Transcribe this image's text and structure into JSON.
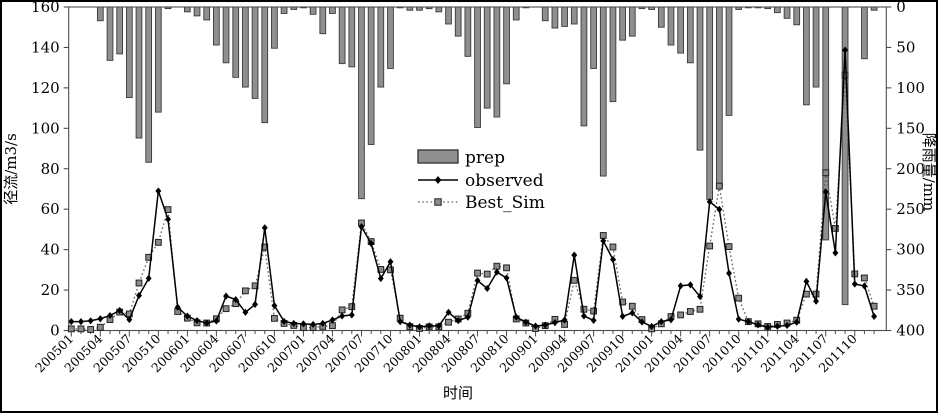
{
  "chart_data": {
    "type": "bar",
    "subtype": "combo-dual-axis",
    "title": "",
    "xlabel": "时间",
    "y_left": {
      "label": "径流/m3/s",
      "min": 0,
      "max": 160,
      "step": 20,
      "ticks": [
        "0",
        "20",
        "40",
        "60",
        "80",
        "100",
        "120",
        "140",
        "160"
      ]
    },
    "y_right": {
      "label": "降雨量/mm",
      "min": 0,
      "max": 400,
      "step": 50,
      "inverted": true,
      "ticks": [
        "0",
        "50",
        "100",
        "150",
        "200",
        "250",
        "300",
        "350",
        "400"
      ]
    },
    "x_tick_label_every": 3,
    "legend": {
      "position": "center",
      "items": [
        {
          "label": "prep",
          "swatch": "bar"
        },
        {
          "label": "observed",
          "swatch": "line-diamond"
        },
        {
          "label": "Best_Sim",
          "swatch": "dotted-square"
        }
      ]
    },
    "categories": [
      "200501",
      "200502",
      "200503",
      "200504",
      "200505",
      "200506",
      "200507",
      "200508",
      "200509",
      "200510",
      "200511",
      "200512",
      "200601",
      "200602",
      "200603",
      "200604",
      "200605",
      "200606",
      "200607",
      "200608",
      "200609",
      "200610",
      "200611",
      "200612",
      "200701",
      "200702",
      "200703",
      "200704",
      "200705",
      "200706",
      "200707",
      "200708",
      "200709",
      "200710",
      "200711",
      "200712",
      "200801",
      "200802",
      "200803",
      "200804",
      "200805",
      "200806",
      "200807",
      "200808",
      "200809",
      "200810",
      "200811",
      "200812",
      "200901",
      "200902",
      "200903",
      "200904",
      "200905",
      "200906",
      "200907",
      "200908",
      "200909",
      "200910",
      "200911",
      "200912",
      "201001",
      "201002",
      "201003",
      "201004",
      "201005",
      "201006",
      "201007",
      "201008",
      "201009",
      "201010",
      "201011",
      "201012",
      "201101",
      "201102",
      "201103",
      "201104",
      "201105",
      "201106",
      "201107",
      "201108",
      "201109",
      "201110",
      "201111",
      "201112"
    ],
    "series": [
      {
        "name": "prep",
        "type": "bar",
        "axis": "right",
        "unit": "mm",
        "color": "#8f8f8f",
        "border_color": "#3a3a3a",
        "values": [
          0,
          0,
          0,
          17,
          66,
          58,
          112,
          162,
          192,
          130,
          2,
          0,
          6,
          11,
          16,
          47,
          69,
          87,
          99,
          113,
          143,
          51,
          8,
          3,
          1,
          9,
          33,
          8,
          70,
          74,
          237,
          170,
          99,
          76,
          1,
          4,
          4,
          2,
          6,
          21,
          36,
          61,
          149,
          125,
          136,
          95,
          16,
          1,
          0,
          17,
          26,
          24,
          21,
          147,
          76,
          209,
          117,
          41,
          36,
          2,
          3,
          25,
          47,
          57,
          69,
          177,
          238,
          224,
          134,
          3,
          1,
          1,
          2,
          7,
          14,
          22,
          121,
          99,
          288,
          0,
          368,
          0,
          64,
          4
        ]
      },
      {
        "name": "observed",
        "type": "line",
        "axis": "left",
        "unit": "m3/s",
        "color": "#000000",
        "marker": "diamond",
        "values": [
          4.4,
          4.4,
          4.8,
          5.8,
          7.4,
          9.9,
          5.4,
          17.3,
          25.8,
          69,
          55,
          11.5,
          7.1,
          4.9,
          3.7,
          4.7,
          17,
          15.3,
          9,
          12.9,
          50.8,
          12.3,
          4.5,
          3.5,
          3.3,
          3,
          3.5,
          5.2,
          7.2,
          7.7,
          51.3,
          43,
          25.7,
          34,
          4.4,
          2.7,
          1.8,
          2.3,
          2.3,
          9,
          4.9,
          6.6,
          24.7,
          20.8,
          28.9,
          26,
          6.6,
          4.1,
          2.2,
          2.7,
          3.9,
          5.2,
          37.3,
          7.2,
          5,
          44.3,
          35.1,
          7,
          8.7,
          4.2,
          2,
          4.4,
          5.3,
          22.1,
          22.6,
          16.8,
          63.7,
          59.9,
          28.3,
          5.6,
          4.4,
          2.8,
          1.6,
          2.1,
          2.5,
          4.1,
          24.3,
          14.5,
          68.5,
          38.4,
          138.7,
          23,
          22,
          7
        ]
      },
      {
        "name": "Best_Sim",
        "type": "line-dotted",
        "axis": "left",
        "unit": "m3/s",
        "color": "#5f5f5f",
        "marker": "square",
        "marker_fill": "#8a8a8a",
        "marker_border": "#222222",
        "values": [
          0.8,
          0.8,
          0.5,
          1.6,
          5.4,
          9.1,
          8.2,
          23.5,
          36.2,
          43.6,
          59.8,
          9.4,
          6.1,
          3.8,
          3.7,
          5.8,
          10.8,
          13.3,
          19.6,
          22.1,
          41.3,
          6,
          3.5,
          2.5,
          1.5,
          1.5,
          2,
          2.4,
          10.2,
          11.8,
          53.2,
          44,
          30.2,
          30,
          6.1,
          1.9,
          1,
          1.8,
          1.8,
          4.1,
          5.7,
          8.5,
          28.4,
          27.9,
          31.8,
          31,
          5.7,
          3.7,
          1,
          2.4,
          5.5,
          3,
          24.8,
          10.5,
          9.6,
          47,
          41.3,
          14.1,
          12,
          5.4,
          0.8,
          3.3,
          6.9,
          7.7,
          9.4,
          10.5,
          41.8,
          71.4,
          41.5,
          16,
          4.4,
          3.3,
          2,
          3,
          3.7,
          5.1,
          18,
          18,
          78,
          50.5,
          126.3,
          28,
          26,
          12
        ]
      }
    ]
  },
  "colors": {
    "frame": "#000000",
    "axis": "#4d4d4d",
    "text": "#000000",
    "background": "#ffffff"
  }
}
